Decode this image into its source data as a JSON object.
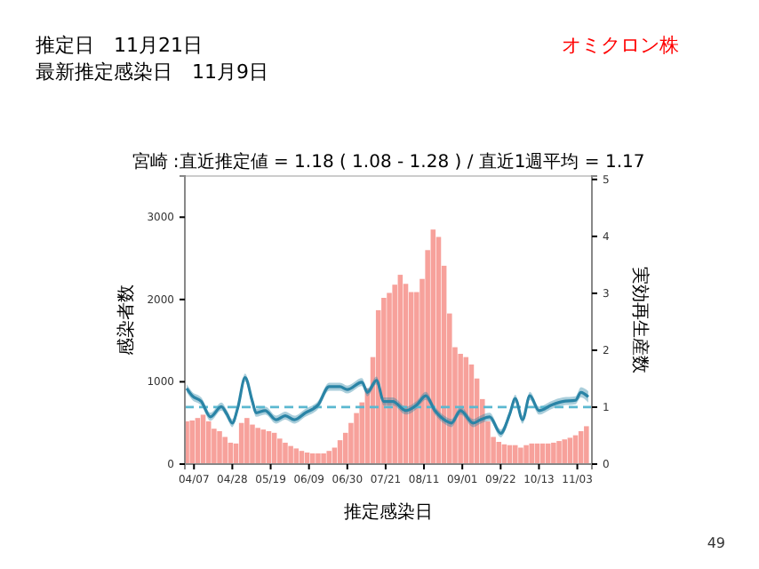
{
  "chart_data": {
    "type": "bar",
    "title": "宮崎 :直近推定値 = 1.18 ( 1.08 - 1.28 ) / 直近1週平均 = 1.17",
    "xlabel": "推定感染日",
    "ylabel": "感染者数",
    "y2label": "実効再生産数",
    "annotations": [
      "推定日　11月21日",
      "最新推定感染日　11月9日",
      "オミクロン株",
      "49"
    ],
    "xlim": [
      "--04-02",
      "--11-11"
    ],
    "xticks": [
      {
        "value": "--04-07",
        "label": "04/07"
      },
      {
        "value": "--04-28",
        "label": "04/28"
      },
      {
        "value": "--05-19",
        "label": "05/19"
      },
      {
        "value": "--06-09",
        "label": "06/09"
      },
      {
        "value": "--06-30",
        "label": "06/30"
      },
      {
        "value": "--07-21",
        "label": "07/21"
      },
      {
        "value": "--08-11",
        "label": "08/11"
      },
      {
        "value": "--09-01",
        "label": "09/01"
      },
      {
        "value": "--09-22",
        "label": "09/22"
      },
      {
        "value": "--10-13",
        "label": "10/13"
      },
      {
        "value": "--11-03",
        "label": "11/03"
      }
    ],
    "ylim": [
      0,
      3500
    ],
    "yticks": [
      0,
      1000,
      2000,
      3000
    ],
    "y2lim": [
      0,
      5.06
    ],
    "y2ticks": [
      0,
      1,
      2,
      3,
      4,
      5
    ],
    "grid": false,
    "ref_lines": [
      {
        "axis": "y2",
        "value": 1,
        "label": null,
        "color": "#5bb8d0",
        "line_style": "dashed"
      }
    ],
    "series": [
      {
        "color": "#f7a19b",
        "x": [
          "--04-03",
          "--04-06",
          "--04-09",
          "--04-12",
          "--04-15",
          "--04-18",
          "--04-21",
          "--04-24",
          "--04-27",
          "--04-30",
          "--05-03",
          "--05-06",
          "--05-09",
          "--05-12",
          "--05-15",
          "--05-18",
          "--05-21",
          "--05-24",
          "--05-27",
          "--05-30",
          "--06-02",
          "--06-05",
          "--06-08",
          "--06-11",
          "--06-14",
          "--06-17",
          "--06-20",
          "--06-23",
          "--06-26",
          "--06-29",
          "--07-02",
          "--07-05",
          "--07-08",
          "--07-11",
          "--07-14",
          "--07-17",
          "--07-20",
          "--07-23",
          "--07-26",
          "--07-29",
          "--08-01",
          "--08-04",
          "--08-07",
          "--08-10",
          "--08-13",
          "--08-16",
          "--08-19",
          "--08-22",
          "--08-25",
          "--08-28",
          "--08-31",
          "--09-03",
          "--09-06",
          "--09-09",
          "--09-12",
          "--09-15",
          "--09-18",
          "--09-21",
          "--09-24",
          "--09-27",
          "--09-30",
          "--10-03",
          "--10-06",
          "--10-09",
          "--10-12",
          "--10-15",
          "--10-18",
          "--10-21",
          "--10-24",
          "--10-27",
          "--10-30",
          "--11-02",
          "--11-05",
          "--11-08"
        ],
        "values": [
          520,
          530,
          560,
          600,
          520,
          430,
          400,
          330,
          260,
          250,
          500,
          560,
          480,
          440,
          420,
          400,
          380,
          310,
          260,
          220,
          190,
          160,
          140,
          130,
          130,
          130,
          160,
          200,
          290,
          380,
          500,
          620,
          750,
          920,
          1300,
          1870,
          2020,
          2080,
          2180,
          2300,
          2190,
          2090,
          2090,
          2250,
          2600,
          2850,
          2760,
          2410,
          1830,
          1420,
          1340,
          1300,
          1210,
          1040,
          790,
          520,
          330,
          270,
          240,
          230,
          230,
          200,
          230,
          250,
          250,
          250,
          250,
          260,
          280,
          300,
          320,
          350,
          400,
          460
        ]
      },
      {
        "type": "line",
        "axis": "y2",
        "color": "#2a84a6",
        "line_style": "solid",
        "marker": "none",
        "x": [
          "--04-03",
          "--04-06",
          "--04-11",
          "--04-16",
          "--04-22",
          "--04-25",
          "--04-28",
          "--05-01",
          "--05-05",
          "--05-09",
          "--05-11",
          "--05-16",
          "--05-22",
          "--05-27",
          "--06-01",
          "--06-07",
          "--06-14",
          "--06-20",
          "--06-26",
          "--06-30",
          "--07-08",
          "--07-11",
          "--07-16",
          "--07-20",
          "--07-25",
          "--08-01",
          "--08-07",
          "--08-12",
          "--08-17",
          "--08-23",
          "--08-26",
          "--08-31",
          "--09-07",
          "--09-11",
          "--09-16",
          "--09-22",
          "--09-27",
          "--09-30",
          "--10-04",
          "--10-08",
          "--10-13",
          "--10-20",
          "--10-26",
          "--11-02",
          "--11-05",
          "--11-09"
        ],
        "values": [
          1.33,
          1.2,
          1.1,
          0.83,
          1.01,
          0.88,
          0.72,
          0.99,
          1.52,
          1.1,
          0.9,
          0.94,
          0.78,
          0.85,
          0.78,
          0.9,
          1.04,
          1.36,
          1.36,
          1.31,
          1.44,
          1.26,
          1.47,
          1.1,
          1.1,
          0.94,
          1.04,
          1.2,
          0.94,
          0.76,
          0.72,
          0.94,
          0.72,
          0.78,
          0.83,
          0.54,
          0.88,
          1.15,
          0.78,
          1.2,
          0.94,
          1.04,
          1.1,
          1.12,
          1.26,
          1.18
        ],
        "lower": [
          1.26,
          1.13,
          1.03,
          0.76,
          0.94,
          0.81,
          0.65,
          0.92,
          1.45,
          1.03,
          0.83,
          0.87,
          0.71,
          0.78,
          0.71,
          0.83,
          0.97,
          1.29,
          1.29,
          1.24,
          1.37,
          1.19,
          1.4,
          1.03,
          1.03,
          0.87,
          0.97,
          1.13,
          0.87,
          0.69,
          0.65,
          0.87,
          0.65,
          0.71,
          0.76,
          0.47,
          0.81,
          1.08,
          0.71,
          1.13,
          0.87,
          0.97,
          1.03,
          1.05,
          1.17,
          1.08
        ],
        "upper": [
          1.4,
          1.27,
          1.17,
          0.9,
          1.08,
          0.95,
          0.79,
          1.06,
          1.59,
          1.17,
          0.97,
          1.01,
          0.85,
          0.92,
          0.85,
          0.97,
          1.11,
          1.43,
          1.43,
          1.38,
          1.51,
          1.33,
          1.54,
          1.17,
          1.17,
          1.01,
          1.11,
          1.27,
          1.01,
          0.83,
          0.79,
          1.01,
          0.79,
          0.85,
          0.9,
          0.61,
          0.95,
          1.22,
          0.85,
          1.27,
          1.01,
          1.11,
          1.17,
          1.19,
          1.35,
          1.28
        ]
      }
    ]
  }
}
